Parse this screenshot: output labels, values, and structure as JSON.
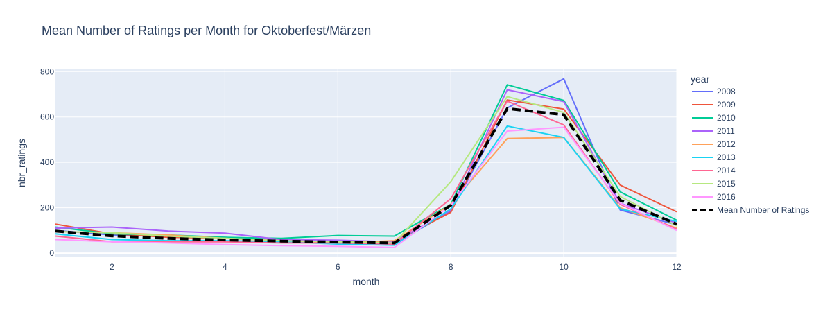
{
  "chart_data": {
    "type": "line",
    "title": "Mean Number of Ratings per Month for Oktoberfest/Märzen",
    "xlabel": "month",
    "ylabel": "nbr_ratings",
    "xlim": [
      1,
      12
    ],
    "ylim": [
      -15,
      810
    ],
    "xticks": [
      2,
      4,
      6,
      8,
      10,
      12
    ],
    "yticks": [
      0,
      200,
      400,
      600,
      800
    ],
    "grid": true,
    "legend_title": "year",
    "legend_position": "right",
    "x": [
      1,
      2,
      3,
      4,
      5,
      6,
      7,
      8,
      9,
      10,
      11,
      12
    ],
    "series": [
      {
        "name": "2008",
        "color": "#636efa",
        "dash": "solid",
        "values": [
          100,
          80,
          75,
          70,
          55,
          55,
          40,
          185,
          640,
          768,
          190,
          125
        ]
      },
      {
        "name": "2009",
        "color": "#ef553b",
        "dash": "solid",
        "values": [
          128,
          85,
          70,
          65,
          55,
          50,
          50,
          180,
          675,
          635,
          300,
          182
        ]
      },
      {
        "name": "2010",
        "color": "#00cc96",
        "dash": "solid",
        "values": [
          115,
          85,
          80,
          70,
          65,
          78,
          75,
          215,
          742,
          673,
          270,
          145
        ]
      },
      {
        "name": "2011",
        "color": "#ab63fa",
        "dash": "solid",
        "values": [
          110,
          115,
          97,
          88,
          60,
          57,
          50,
          190,
          720,
          668,
          220,
          132
        ]
      },
      {
        "name": "2012",
        "color": "#ffa15a",
        "dash": "solid",
        "values": [
          95,
          90,
          80,
          65,
          55,
          45,
          55,
          215,
          505,
          510,
          200,
          110
        ]
      },
      {
        "name": "2013",
        "color": "#19d3f3",
        "dash": "solid",
        "values": [
          85,
          60,
          55,
          55,
          50,
          40,
          35,
          195,
          560,
          510,
          195,
          140
        ]
      },
      {
        "name": "2014",
        "color": "#ff6692",
        "dash": "solid",
        "values": [
          75,
          50,
          50,
          50,
          45,
          45,
          40,
          240,
          670,
          565,
          215,
          105
        ]
      },
      {
        "name": "2015",
        "color": "#b6e880",
        "dash": "solid",
        "values": [
          95,
          90,
          75,
          65,
          55,
          50,
          45,
          315,
          690,
          620,
          250,
          120
        ]
      },
      {
        "name": "2016",
        "color": "#ff97ff",
        "dash": "solid",
        "values": [
          60,
          50,
          45,
          38,
          33,
          30,
          25,
          210,
          538,
          555,
          220,
          100
        ]
      },
      {
        "name": "Mean Number of Ratings",
        "color": "#000000",
        "dash": "dash",
        "values": [
          97,
          76,
          65,
          58,
          53,
          49,
          45,
          211,
          637,
          610,
          233,
          128
        ]
      }
    ]
  }
}
